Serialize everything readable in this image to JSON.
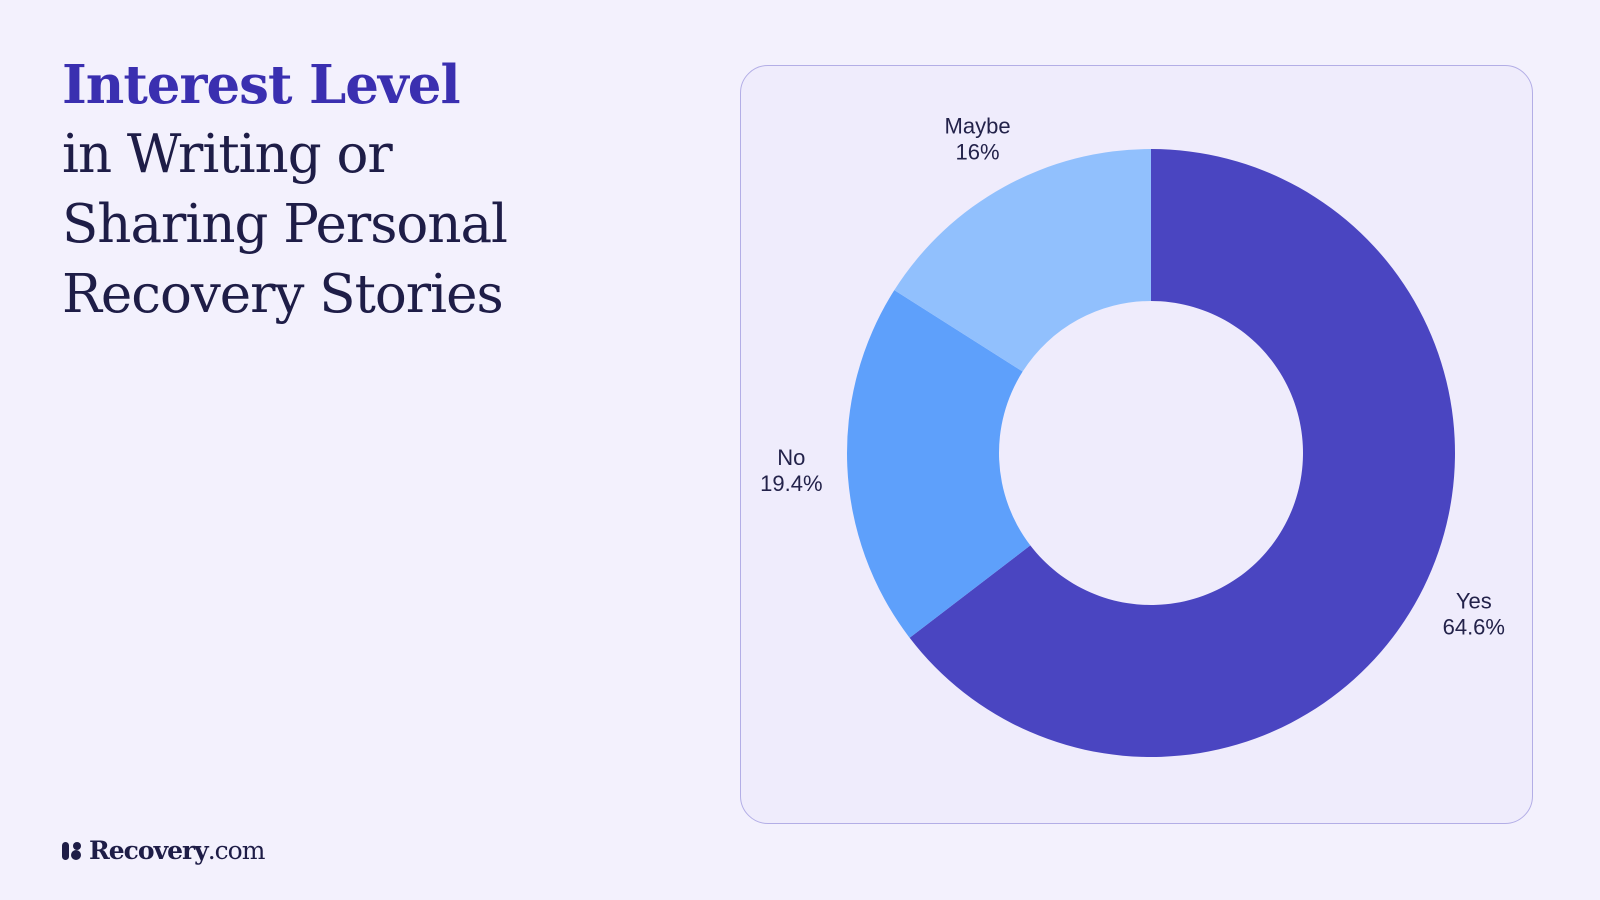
{
  "title": {
    "accent": "Interest Level",
    "lines": [
      "in Writing or",
      "Sharing Personal",
      "Recovery Stories"
    ]
  },
  "brand": {
    "name": "Recovery",
    "suffix": ".com"
  },
  "colors": {
    "background": "#f3f1fd",
    "card": "#efecfc",
    "accent": "#3a2fb0",
    "text": "#1e1d47"
  },
  "chart_data": {
    "type": "pie",
    "donut": true,
    "title": "Interest Level in Writing or Sharing Personal Recovery Stories",
    "slices": [
      {
        "label": "Yes",
        "value": 64.6,
        "value_label": "64.6%",
        "color": "#4a45c1"
      },
      {
        "label": "No",
        "value": 19.4,
        "value_label": "19.4%",
        "color": "#5ea0fb"
      },
      {
        "label": "Maybe",
        "value": 16,
        "value_label": "16%",
        "color": "#91c0fd"
      }
    ],
    "start": "top",
    "direction": "clockwise",
    "legend": "none",
    "labels": "outside"
  }
}
